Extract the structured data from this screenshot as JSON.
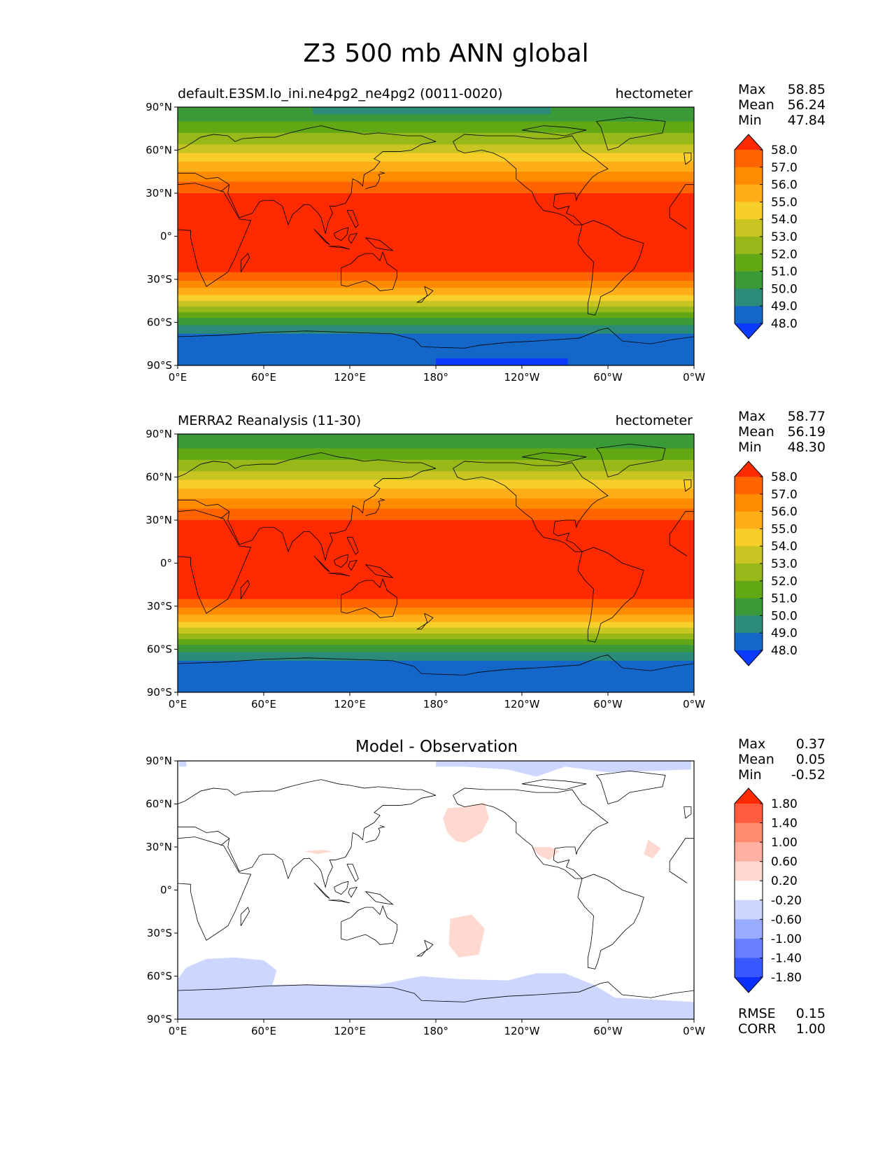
{
  "title": "Z3 500 mb ANN global",
  "chart_data": [
    {
      "type": "heatmap",
      "title": "default.E3SM.lo_ini.ne4pg2_ne4pg2 (0011-0020)",
      "units": "hectometer",
      "stats": {
        "max": "58.85",
        "mean": "56.24",
        "min": "47.84"
      },
      "stat_labels": {
        "max": "Max",
        "mean": "Mean",
        "min": "Min"
      },
      "x_ticks": [
        "0°E",
        "60°E",
        "120°E",
        "180°",
        "120°W",
        "60°W",
        "0°W"
      ],
      "y_ticks": [
        "90°N",
        "60°N",
        "30°N",
        "0°",
        "30°S",
        "60°S",
        "90°S"
      ],
      "xlim": [
        0,
        360
      ],
      "ylim": [
        -90,
        90
      ],
      "colorbar_levels": [
        "58.0",
        "57.0",
        "56.0",
        "55.0",
        "54.0",
        "53.0",
        "52.0",
        "51.0",
        "50.0",
        "49.0",
        "48.0"
      ],
      "colorbar_colors": [
        "#ff2a00",
        "#ff6400",
        "#ff8c00",
        "#ffae1a",
        "#f8cf28",
        "#c8c421",
        "#98b81a",
        "#62a815",
        "#3a9a38",
        "#2c8a78",
        "#1467c8",
        "#0b3bff"
      ]
    },
    {
      "type": "heatmap",
      "title": "MERRA2 Reanalysis (11-30)",
      "units": "hectometer",
      "stats": {
        "max": "58.77",
        "mean": "56.19",
        "min": "48.30"
      },
      "stat_labels": {
        "max": "Max",
        "mean": "Mean",
        "min": "Min"
      },
      "x_ticks": [
        "0°E",
        "60°E",
        "120°E",
        "180°",
        "120°W",
        "60°W",
        "0°W"
      ],
      "y_ticks": [
        "90°N",
        "60°N",
        "30°N",
        "0°",
        "30°S",
        "60°S",
        "90°S"
      ],
      "xlim": [
        0,
        360
      ],
      "ylim": [
        -90,
        90
      ],
      "colorbar_levels": [
        "58.0",
        "57.0",
        "56.0",
        "55.0",
        "54.0",
        "53.0",
        "52.0",
        "51.0",
        "50.0",
        "49.0",
        "48.0"
      ],
      "colorbar_colors": [
        "#ff2a00",
        "#ff6400",
        "#ff8c00",
        "#ffae1a",
        "#f8cf28",
        "#c8c421",
        "#98b81a",
        "#62a815",
        "#3a9a38",
        "#2c8a78",
        "#1467c8",
        "#0b3bff"
      ]
    },
    {
      "type": "heatmap",
      "title": "Model - Observation",
      "stats": {
        "max": "0.37",
        "mean": "0.05",
        "min": "-0.52"
      },
      "stat_labels": {
        "max": "Max",
        "mean": "Mean",
        "min": "Min"
      },
      "metrics": {
        "rmse_label": "RMSE",
        "rmse": "0.15",
        "corr_label": "CORR",
        "corr": "1.00"
      },
      "x_ticks": [
        "0°E",
        "60°E",
        "120°E",
        "180°",
        "120°W",
        "60°W",
        "0°W"
      ],
      "y_ticks": [
        "90°N",
        "60°N",
        "30°N",
        "0°",
        "30°S",
        "60°S",
        "90°S"
      ],
      "xlim": [
        0,
        360
      ],
      "ylim": [
        -90,
        90
      ],
      "colorbar_levels": [
        "1.80",
        "1.40",
        "1.00",
        "0.60",
        "0.20",
        "-0.20",
        "-0.60",
        "-1.00",
        "-1.40",
        "-1.80"
      ],
      "colorbar_colors": [
        "#ff2a00",
        "#ff5b3c",
        "#ff8a70",
        "#ffb0a0",
        "#ffd8d0",
        "#ffffff",
        "#ccd6ff",
        "#9aacff",
        "#6880ff",
        "#3a58ff",
        "#0a30ff"
      ]
    }
  ]
}
